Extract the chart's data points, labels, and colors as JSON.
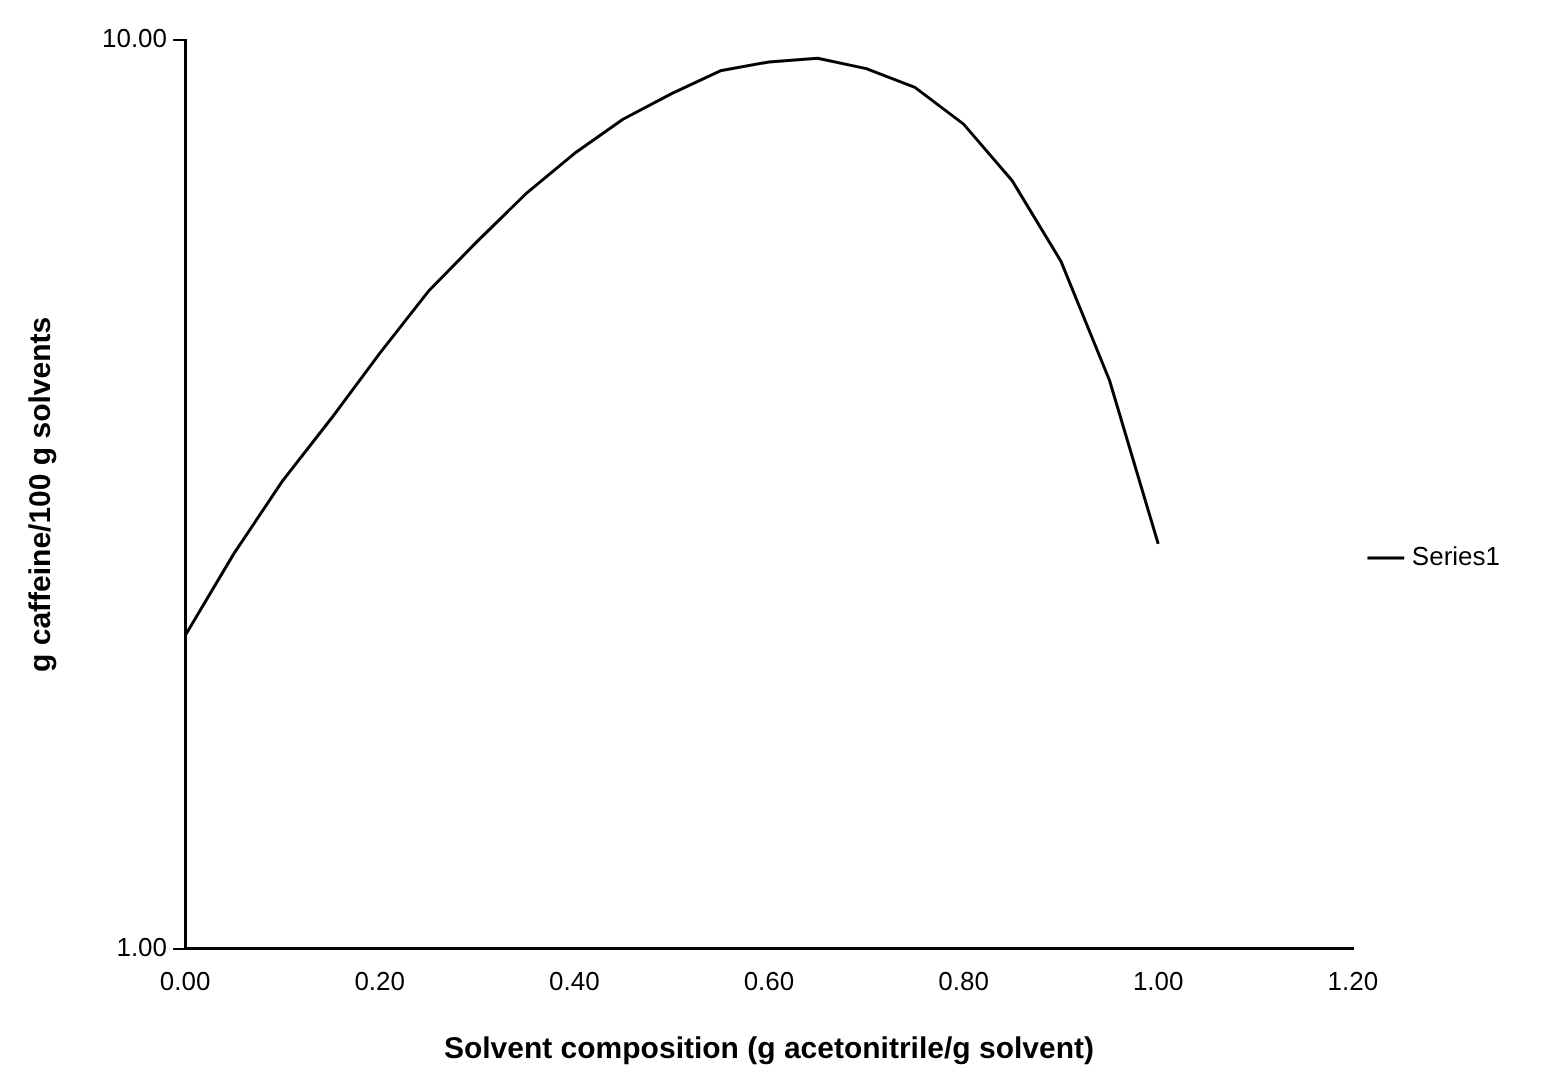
{
  "chart_data": {
    "type": "line",
    "xlabel": "Solvent composition (g acetonitrile/g solvent)",
    "ylabel": "g caffeine/100 g solvents",
    "x": [
      0,
      0.05,
      0.1,
      0.15,
      0.2,
      0.25,
      0.3,
      0.35,
      0.4,
      0.45,
      0.5,
      0.55,
      0.6,
      0.65,
      0.7,
      0.75,
      0.8,
      0.85,
      0.9,
      0.95,
      1.0
    ],
    "series": [
      {
        "name": "Series1",
        "color": "#000000",
        "values": [
          2.21,
          2.72,
          3.27,
          3.83,
          4.52,
          5.29,
          6.0,
          6.77,
          7.5,
          8.18,
          8.73,
          9.25,
          9.46,
          9.55,
          9.3,
          8.87,
          8.08,
          7.0,
          5.71,
          4.22,
          2.79
        ]
      }
    ],
    "xlim": [
      0,
      1.2
    ],
    "xticks": [
      {
        "value": 0,
        "label": "0.00"
      },
      {
        "value": 0.2,
        "label": "0.20"
      },
      {
        "value": 0.4,
        "label": "0.40"
      },
      {
        "value": 0.6,
        "label": "0.60"
      },
      {
        "value": 0.8,
        "label": "0.80"
      },
      {
        "value": 1.0,
        "label": "1.00"
      },
      {
        "value": 1.2,
        "label": "1.20"
      }
    ],
    "ylim": [
      1,
      10
    ],
    "yticks": [
      {
        "value": 1,
        "label": "1.00"
      },
      {
        "value": 10,
        "label": "10.00"
      }
    ],
    "log": true,
    "grid": false,
    "legend": "right",
    "marker": "none",
    "line_style": "solid"
  }
}
